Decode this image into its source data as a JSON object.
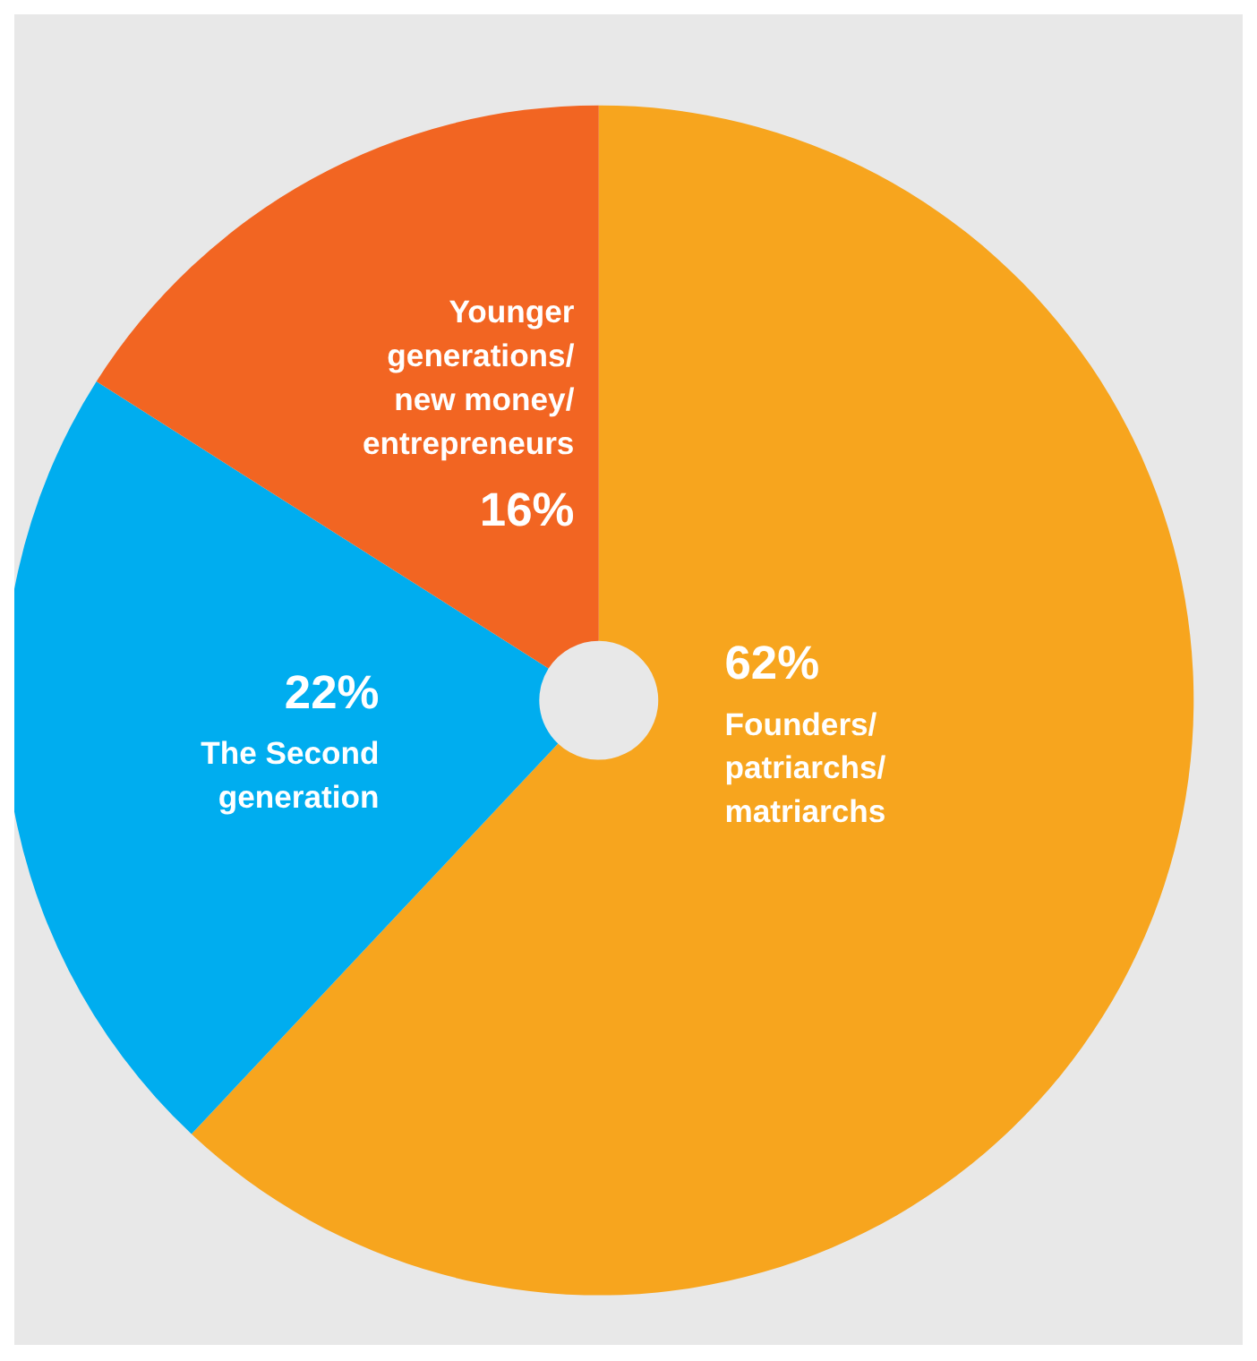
{
  "chart_data": {
    "type": "pie",
    "categories": [
      "Founders/ patriarchs/ matriarchs",
      "The Second generation",
      "Younger generations/ new money/ entrepreneurs"
    ],
    "values": [
      62,
      22,
      16
    ],
    "colors": [
      "#f7a51e",
      "#00adef",
      "#f26522"
    ],
    "value_labels": [
      "62%",
      "22%",
      "16%"
    ]
  }
}
